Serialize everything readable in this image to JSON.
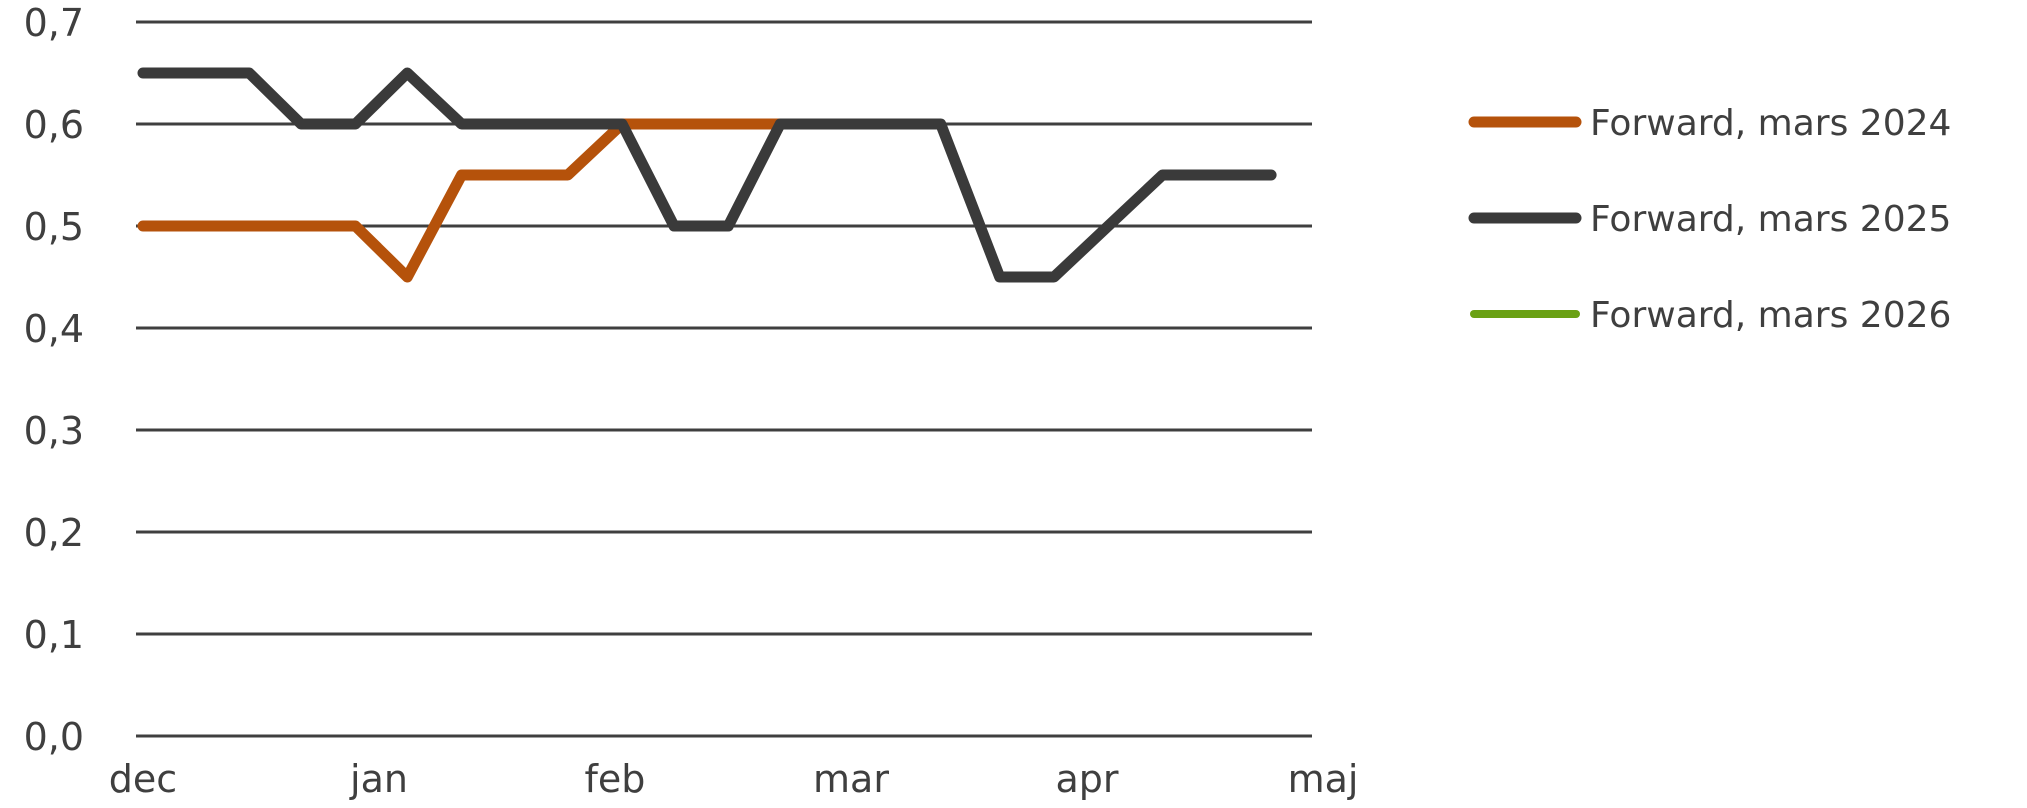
{
  "chart_data": {
    "type": "line",
    "title": "",
    "xlabel": "",
    "ylabel": "",
    "x_ticks": [
      "dec",
      "jan",
      "feb",
      "mar",
      "apr",
      "maj"
    ],
    "y_ticks": [
      "0,0",
      "0,1",
      "0,2",
      "0,3",
      "0,4",
      "0,5",
      "0,6",
      "0,7"
    ],
    "ylim": [
      0,
      0.7
    ],
    "grid": true,
    "legend_position": "right",
    "series": [
      {
        "name": "Forward, mars 2024",
        "color": "#b5520b",
        "points": [
          [
            0,
            0.5
          ],
          [
            0.22,
            0.5
          ],
          [
            0.45,
            0.5
          ],
          [
            0.67,
            0.5
          ],
          [
            0.9,
            0.5
          ],
          [
            1.12,
            0.45
          ],
          [
            1.35,
            0.55
          ],
          [
            1.57,
            0.55
          ],
          [
            1.8,
            0.55
          ],
          [
            2.03,
            0.6
          ],
          [
            2.25,
            0.6
          ],
          [
            2.48,
            0.6
          ],
          [
            2.7,
            0.6
          ],
          [
            2.93,
            0.6
          ],
          [
            3.15,
            0.6
          ]
        ]
      },
      {
        "name": "Forward, mars 2025",
        "color": "#3a3a3a",
        "points": [
          [
            0,
            0.65
          ],
          [
            0.22,
            0.65
          ],
          [
            0.45,
            0.65
          ],
          [
            0.67,
            0.6
          ],
          [
            0.9,
            0.6
          ],
          [
            1.12,
            0.65
          ],
          [
            1.35,
            0.6
          ],
          [
            1.57,
            0.6
          ],
          [
            1.8,
            0.6
          ],
          [
            2.03,
            0.6
          ],
          [
            2.25,
            0.5
          ],
          [
            2.48,
            0.5
          ],
          [
            2.7,
            0.6
          ],
          [
            2.93,
            0.6
          ],
          [
            3.15,
            0.6
          ],
          [
            3.38,
            0.6
          ],
          [
            3.63,
            0.45
          ],
          [
            3.86,
            0.45
          ],
          [
            4.09,
            0.5
          ],
          [
            4.32,
            0.55
          ],
          [
            4.55,
            0.55
          ],
          [
            4.78,
            0.55
          ]
        ]
      },
      {
        "name": "Forward, mars 2026",
        "color": "#6aa114",
        "points": []
      }
    ]
  }
}
